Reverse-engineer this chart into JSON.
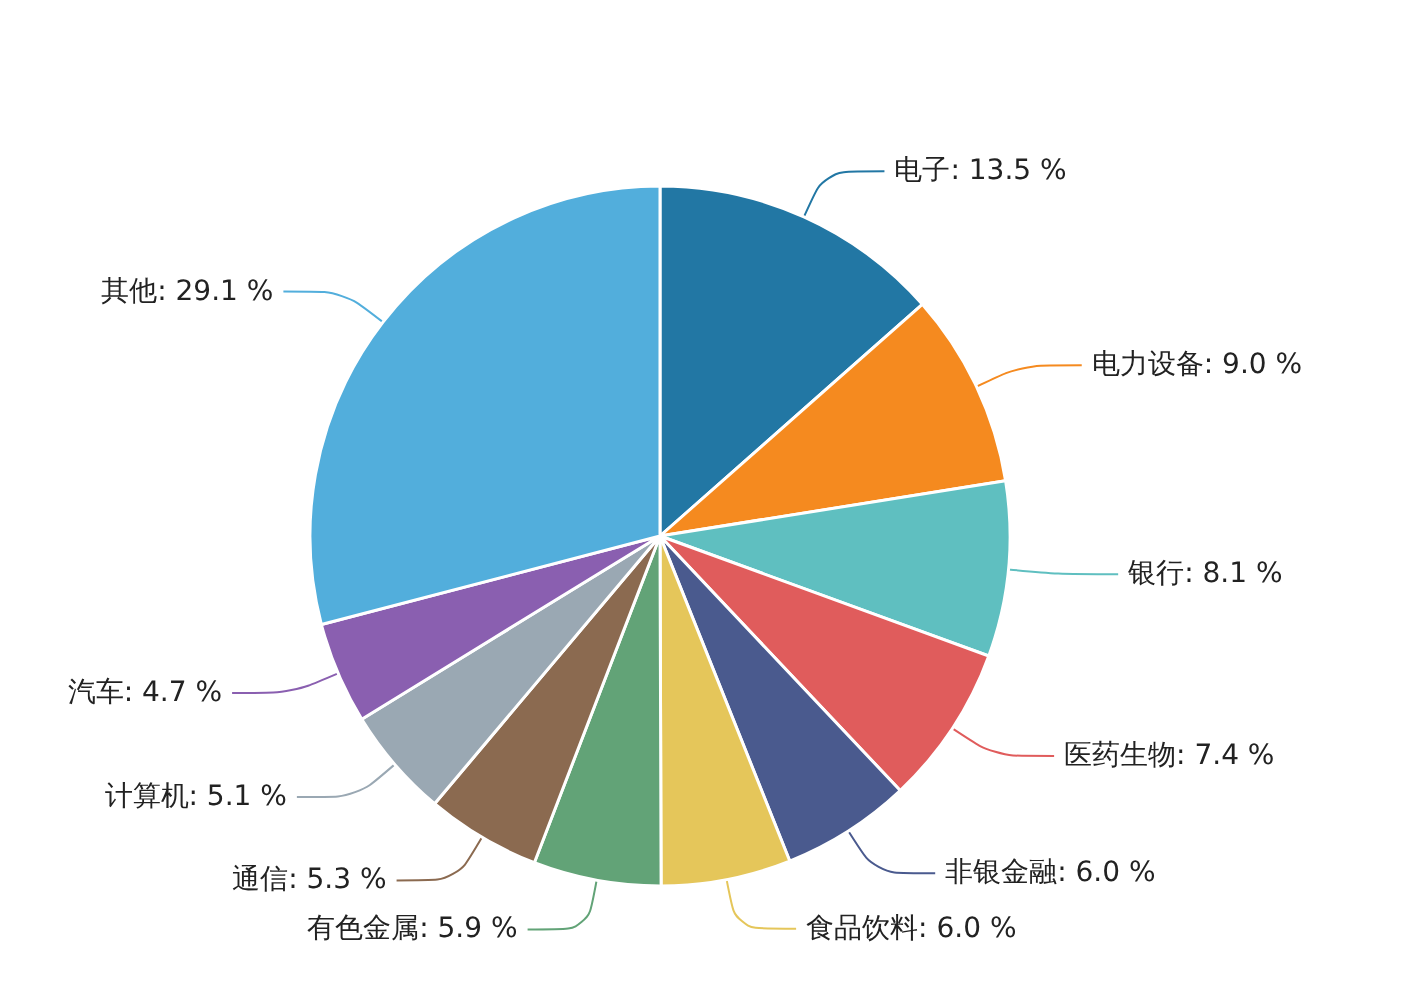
{
  "chart_data": {
    "type": "pie",
    "categories": [
      "电子",
      "电力设备",
      "银行",
      "医药生物",
      "非银金融",
      "食品饮料",
      "有色金属",
      "通信",
      "计算机",
      "汽车",
      "其他"
    ],
    "values": [
      13.5,
      9.0,
      8.1,
      7.4,
      6.0,
      6.0,
      5.9,
      5.3,
      5.1,
      4.7,
      29.1
    ],
    "value_labels": [
      "13.5 %",
      "9.0 %",
      "8.1 %",
      "7.4 %",
      "6.0 %",
      "6.0 %",
      "5.9 %",
      "5.3 %",
      "5.1 %",
      "4.7 %",
      "29.1 %"
    ],
    "colors": [
      "#2277a4",
      "#f58a1f",
      "#5fbfc0",
      "#e05c5c",
      "#4a5a8e",
      "#e5c65a",
      "#62a377",
      "#8b6a50",
      "#9aa8b3",
      "#8a5fb0",
      "#52aedc"
    ],
    "legend": false
  }
}
